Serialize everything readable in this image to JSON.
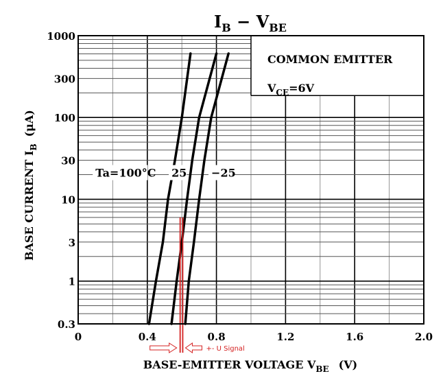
{
  "chart_data": {
    "type": "line",
    "title_main": "I",
    "title_sub1": "B",
    "title_mid": " − V",
    "title_sub2": "BE",
    "xlabel_main": "BASE-EMITTER VOLTAGE  V",
    "xlabel_sub": "BE",
    "xlabel_unit": "(V)",
    "ylabel_main": "BASE CURRENT  I",
    "ylabel_sub": "B",
    "ylabel_unit": "(μA)",
    "xlim": [
      0,
      2.0
    ],
    "ylim": [
      0.3,
      1000
    ],
    "yscale": "log",
    "xticks": [
      0,
      0.4,
      0.8,
      1.2,
      1.6,
      2.0
    ],
    "xtick_labels": [
      "0",
      "0.4",
      "0.8",
      "1.2",
      "1.6",
      "2.0"
    ],
    "yticks": [
      0.3,
      1,
      3,
      10,
      30,
      100,
      300,
      1000
    ],
    "ytick_labels": [
      "0.3",
      "1",
      "3",
      "10",
      "30",
      "100",
      "300",
      "1000"
    ],
    "info_line1": "COMMON EMITTER",
    "info_line2_main": "V",
    "info_line2_sub": "CE",
    "info_line2_rest": "=6V",
    "series": [
      {
        "label": "Ta=100°C",
        "x": [
          0.41,
          0.45,
          0.49,
          0.52,
          0.56,
          0.6,
          0.65
        ],
        "y": [
          0.3,
          1,
          3,
          10,
          30,
          100,
          1200
        ]
      },
      {
        "label": "25",
        "x": [
          0.54,
          0.57,
          0.6,
          0.63,
          0.66,
          0.7,
          0.8
        ],
        "y": [
          0.3,
          1,
          3,
          10,
          30,
          100,
          1200
        ]
      },
      {
        "label": "−25",
        "x": [
          0.62,
          0.64,
          0.67,
          0.7,
          0.73,
          0.77,
          0.87
        ],
        "y": [
          0.3,
          1,
          3,
          10,
          30,
          100,
          1200
        ]
      }
    ],
    "annotation": {
      "text": "+- U Signal",
      "color": "#d42020",
      "lines_x": [
        0.59,
        0.605
      ],
      "lines_y_top": 6
    }
  }
}
